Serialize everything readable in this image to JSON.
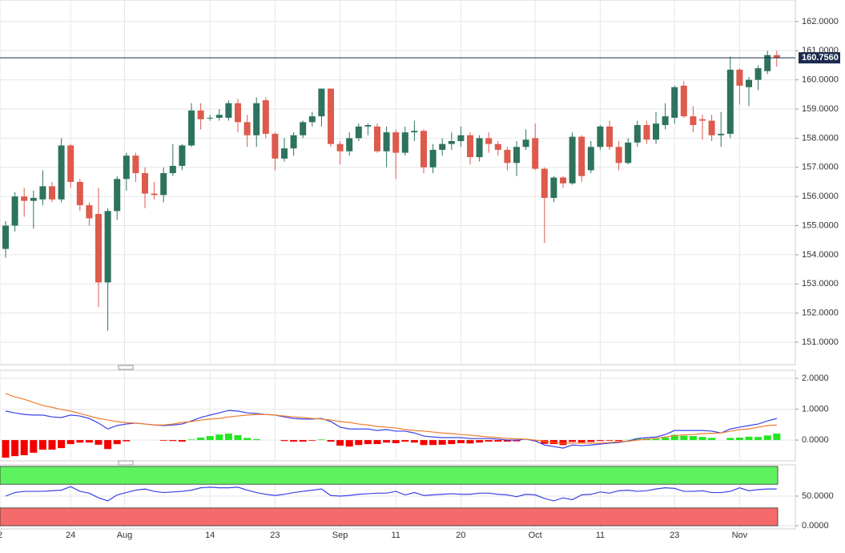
{
  "chart_data": [
    {
      "type": "candlestick",
      "open": [
        154.2,
        155.0,
        156.0,
        155.85,
        155.9,
        156.35,
        155.9,
        157.75,
        156.5,
        155.7,
        155.4,
        153.05,
        155.5,
        156.6,
        157.4,
        156.8,
        156.1,
        156.05,
        156.8,
        157.05,
        157.75,
        158.95,
        158.7,
        158.7,
        158.7,
        159.2,
        158.55,
        158.1,
        159.3,
        158.15,
        157.3,
        157.65,
        158.1,
        158.55,
        158.75,
        159.7,
        157.8,
        157.55,
        158.0,
        158.4,
        158.4,
        157.55,
        158.2,
        157.5,
        158.2,
        158.25,
        157.0,
        157.6,
        157.8,
        157.9,
        158.1,
        157.35,
        158.0,
        157.8,
        157.6,
        157.15,
        157.7,
        158.0,
        156.95,
        155.95,
        156.65,
        156.45,
        158.05,
        156.9,
        157.7,
        158.4,
        157.7,
        157.15,
        157.85,
        158.45,
        157.95,
        158.45,
        158.7,
        159.8,
        158.75,
        158.65,
        158.6,
        158.1,
        158.15,
        160.35,
        159.75,
        160.0,
        160.3,
        160.85
      ],
      "high": [
        155.15,
        156.15,
        156.3,
        156.2,
        156.9,
        156.5,
        158.0,
        157.8,
        156.6,
        155.8,
        156.3,
        155.6,
        156.7,
        157.5,
        157.5,
        157.0,
        156.5,
        157.0,
        157.8,
        157.8,
        159.2,
        159.2,
        158.8,
        159.0,
        159.3,
        159.35,
        158.8,
        159.4,
        159.4,
        158.2,
        158.0,
        158.2,
        158.6,
        158.9,
        159.7,
        159.7,
        157.9,
        158.2,
        158.5,
        158.5,
        158.5,
        158.4,
        158.3,
        158.4,
        158.6,
        158.3,
        157.8,
        158.0,
        158.2,
        158.4,
        158.2,
        158.1,
        158.2,
        157.9,
        157.7,
        157.9,
        158.3,
        158.5,
        157.0,
        156.7,
        156.7,
        158.2,
        158.1,
        157.9,
        158.45,
        158.6,
        157.9,
        158.0,
        158.6,
        158.6,
        158.9,
        159.2,
        159.8,
        159.95,
        159.1,
        158.8,
        158.8,
        158.9,
        160.8,
        160.4,
        160.1,
        160.5,
        161.0,
        161.0
      ],
      "low": [
        153.9,
        154.8,
        155.3,
        154.9,
        155.7,
        155.8,
        155.8,
        156.3,
        155.5,
        155.0,
        152.2,
        151.4,
        155.2,
        156.2,
        156.5,
        155.6,
        155.9,
        155.8,
        156.7,
        156.9,
        157.7,
        158.3,
        158.6,
        158.6,
        158.6,
        158.2,
        157.7,
        157.7,
        158.0,
        156.9,
        157.2,
        157.4,
        158.0,
        158.4,
        158.4,
        157.7,
        157.1,
        157.4,
        157.9,
        158.1,
        157.5,
        157.0,
        156.6,
        157.4,
        157.9,
        156.8,
        156.8,
        157.4,
        157.6,
        157.7,
        157.1,
        157.2,
        157.5,
        157.4,
        156.9,
        156.7,
        157.6,
        156.9,
        154.4,
        155.8,
        156.3,
        156.4,
        156.5,
        156.8,
        157.6,
        157.6,
        156.9,
        157.1,
        157.7,
        157.8,
        157.8,
        158.3,
        158.5,
        158.7,
        158.2,
        157.95,
        157.9,
        157.7,
        158.0,
        159.15,
        159.1,
        159.65,
        160.2,
        160.45
      ],
      "close": [
        155.0,
        156.0,
        155.85,
        155.95,
        156.35,
        155.9,
        157.75,
        156.5,
        155.7,
        155.25,
        153.05,
        155.5,
        156.6,
        157.4,
        156.8,
        156.1,
        156.05,
        156.8,
        157.05,
        157.75,
        158.95,
        158.65,
        158.7,
        158.8,
        159.2,
        158.55,
        158.1,
        159.2,
        158.15,
        157.3,
        157.65,
        158.1,
        158.55,
        158.75,
        159.7,
        157.8,
        157.55,
        158.0,
        158.4,
        158.45,
        157.55,
        158.2,
        157.5,
        158.2,
        158.25,
        157.0,
        157.6,
        157.8,
        157.9,
        158.1,
        157.35,
        158.0,
        157.8,
        157.6,
        157.15,
        157.7,
        157.95,
        156.95,
        155.95,
        156.65,
        156.45,
        158.05,
        156.7,
        157.7,
        158.4,
        157.7,
        157.15,
        157.85,
        158.45,
        157.95,
        158.5,
        158.75,
        159.75,
        158.75,
        158.45,
        158.6,
        158.1,
        158.15,
        160.35,
        159.8,
        160.0,
        160.4,
        160.85,
        160.756
      ],
      "up_color": "#2d735d",
      "down_color": "#dd5a4c",
      "last_price": {
        "value": 160.756,
        "label": "160.7560"
      },
      "last_price_color": "#1c2b4f",
      "ylim": [
        150.23,
        162.74
      ],
      "yticks": [
        {
          "value": 151,
          "label": "151.0000"
        },
        {
          "value": 152,
          "label": "152.0000"
        },
        {
          "value": 153,
          "label": "153.0000"
        },
        {
          "value": 154,
          "label": "154.0000"
        },
        {
          "value": 155,
          "label": "155.0000"
        },
        {
          "value": 156,
          "label": "156.0000"
        },
        {
          "value": 157,
          "label": "157.0000"
        },
        {
          "value": 158,
          "label": "158.0000"
        },
        {
          "value": 159,
          "label": "159.0000"
        },
        {
          "value": 160,
          "label": "160.0000"
        },
        {
          "value": 161,
          "label": "161.0000"
        },
        {
          "value": 162,
          "label": "162.0000"
        }
      ],
      "grid": true
    },
    {
      "type": "macd",
      "series": [
        {
          "name": "MACD",
          "color": "#3a43e6",
          "values": [
            0.94,
            0.88,
            0.83,
            0.81,
            0.81,
            0.75,
            0.73,
            0.81,
            0.78,
            0.7,
            0.55,
            0.36,
            0.47,
            0.52,
            0.55,
            0.52,
            0.49,
            0.47,
            0.49,
            0.52,
            0.62,
            0.73,
            0.81,
            0.88,
            0.96,
            0.94,
            0.88,
            0.86,
            0.83,
            0.81,
            0.75,
            0.7,
            0.68,
            0.68,
            0.7,
            0.6,
            0.42,
            0.36,
            0.36,
            0.36,
            0.31,
            0.34,
            0.29,
            0.29,
            0.23,
            0.13,
            0.1,
            0.08,
            0.08,
            0.08,
            0.05,
            0.05,
            0.05,
            0.03,
            0.0,
            0.0,
            0.03,
            -0.03,
            -0.16,
            -0.21,
            -0.26,
            -0.16,
            -0.18,
            -0.16,
            -0.13,
            -0.1,
            -0.08,
            -0.03,
            0.05,
            0.08,
            0.1,
            0.18,
            0.31,
            0.31,
            0.31,
            0.31,
            0.29,
            0.23,
            0.36,
            0.42,
            0.47,
            0.52,
            0.62,
            0.7
          ]
        },
        {
          "name": "Signal",
          "color": "#f07c2e",
          "values": [
            1.51,
            1.4,
            1.32,
            1.22,
            1.12,
            1.06,
            0.99,
            0.94,
            0.86,
            0.78,
            0.7,
            0.65,
            0.6,
            0.56,
            0.55,
            0.52,
            0.49,
            0.49,
            0.52,
            0.57,
            0.6,
            0.65,
            0.68,
            0.7,
            0.75,
            0.78,
            0.81,
            0.83,
            0.83,
            0.81,
            0.78,
            0.75,
            0.73,
            0.7,
            0.68,
            0.65,
            0.6,
            0.57,
            0.52,
            0.49,
            0.44,
            0.42,
            0.39,
            0.34,
            0.31,
            0.29,
            0.26,
            0.23,
            0.21,
            0.18,
            0.16,
            0.13,
            0.1,
            0.08,
            0.05,
            0.04,
            0.03,
            0.0,
            -0.04,
            -0.08,
            -0.1,
            -0.1,
            -0.1,
            -0.1,
            -0.1,
            -0.08,
            -0.05,
            -0.04,
            0.0,
            0.03,
            0.06,
            0.1,
            0.14,
            0.17,
            0.18,
            0.21,
            0.22,
            0.23,
            0.29,
            0.34,
            0.36,
            0.42,
            0.47,
            0.49
          ]
        }
      ],
      "histogram": [
        -0.57,
        -0.52,
        -0.49,
        -0.41,
        -0.31,
        -0.31,
        -0.26,
        -0.13,
        -0.08,
        -0.08,
        -0.15,
        -0.29,
        -0.13,
        -0.04,
        0.0,
        0.0,
        0.0,
        -0.02,
        -0.03,
        -0.05,
        0.02,
        0.08,
        0.13,
        0.18,
        0.21,
        0.16,
        0.07,
        0.03,
        0.0,
        0.0,
        -0.03,
        -0.05,
        -0.05,
        -0.02,
        0.02,
        -0.05,
        -0.18,
        -0.21,
        -0.16,
        -0.13,
        -0.13,
        -0.08,
        -0.1,
        -0.05,
        -0.08,
        -0.16,
        -0.16,
        -0.15,
        -0.13,
        -0.1,
        -0.11,
        -0.08,
        -0.05,
        -0.05,
        -0.05,
        -0.04,
        0.0,
        -0.03,
        -0.12,
        -0.13,
        -0.16,
        -0.06,
        -0.08,
        -0.06,
        -0.03,
        -0.02,
        -0.03,
        0.01,
        0.05,
        0.05,
        0.04,
        0.08,
        0.17,
        0.14,
        0.13,
        0.1,
        0.07,
        0.0,
        0.07,
        0.08,
        0.11,
        0.1,
        0.15,
        0.21
      ],
      "positive_color": "#22e622",
      "negative_color": "#f20000",
      "ylim": [
        -0.62,
        2.26
      ],
      "yticks": [
        {
          "value": 0,
          "label": "0.0000"
        },
        {
          "value": 1,
          "label": "1.0000"
        },
        {
          "value": 2,
          "label": "2.0000"
        }
      ],
      "grid": true
    },
    {
      "type": "line",
      "series": [
        {
          "name": "RSI",
          "color": "#3a43e6",
          "values": [
            50,
            56,
            58,
            58,
            58,
            59,
            60,
            66,
            58,
            55,
            47,
            42,
            52,
            56,
            60,
            62,
            58,
            56,
            57,
            58,
            60,
            64,
            65,
            64,
            64,
            65,
            60,
            56,
            53,
            51,
            53,
            56,
            58,
            60,
            62,
            51,
            50,
            51,
            53,
            54,
            55,
            55,
            58,
            52,
            56,
            51,
            52,
            53,
            54,
            53,
            53,
            55,
            55,
            53,
            52,
            49,
            53,
            52,
            46,
            42,
            47,
            44,
            52,
            53,
            57,
            55,
            59,
            60,
            58,
            59,
            62,
            64,
            63,
            58,
            58,
            59,
            56,
            56,
            58,
            64,
            59,
            61,
            62,
            62
          ]
        }
      ],
      "zones": [
        {
          "from": 70,
          "to": 100,
          "color": "#5ff25f"
        },
        {
          "from": 0,
          "to": 30,
          "color": "#f56b6b"
        }
      ],
      "ylim": [
        0,
        100
      ],
      "yticks": [
        {
          "value": 0,
          "label": "0.0000"
        },
        {
          "value": 50,
          "label": "50.0000"
        }
      ],
      "xticks": [
        {
          "value": -0.6,
          "label": "2"
        },
        {
          "value": 7,
          "label": "24"
        },
        {
          "value": 12.8,
          "label": "Aug"
        },
        {
          "value": 22,
          "label": "14"
        },
        {
          "value": 29,
          "label": "23"
        },
        {
          "value": 36,
          "label": "Sep"
        },
        {
          "value": 42,
          "label": "11"
        },
        {
          "value": 49,
          "label": "20"
        },
        {
          "value": 57,
          "label": "Oct"
        },
        {
          "value": 64,
          "label": "11"
        },
        {
          "value": 72,
          "label": "23"
        },
        {
          "value": 79,
          "label": "Nov"
        }
      ],
      "grid": true
    }
  ]
}
